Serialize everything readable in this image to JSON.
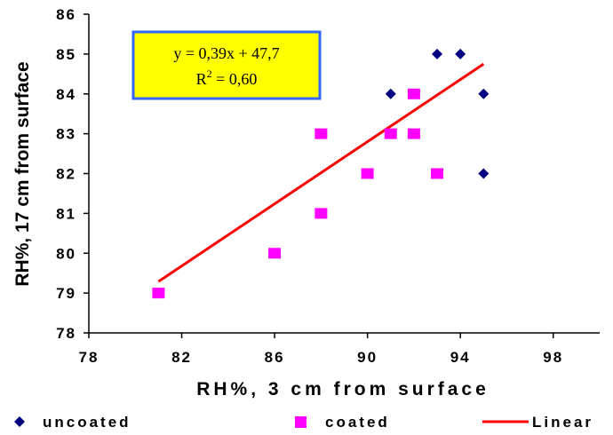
{
  "chart_data": {
    "type": "scatter",
    "xlabel": "RH%, 3 cm from surface",
    "ylabel": "RH%, 17 cm from surface",
    "xlim": [
      78,
      100
    ],
    "ylim": [
      78,
      86
    ],
    "xticks": [
      78,
      82,
      86,
      90,
      94,
      98
    ],
    "yticks": [
      78,
      79,
      80,
      81,
      82,
      83,
      84,
      85,
      86
    ],
    "series": [
      {
        "name": "uncoated",
        "marker": "diamond",
        "color": "#000080",
        "points": [
          [
            91,
            84
          ],
          [
            93,
            85
          ],
          [
            94,
            85
          ],
          [
            95,
            84
          ],
          [
            95,
            82
          ]
        ]
      },
      {
        "name": "coated",
        "marker": "square",
        "color": "#ff00ff",
        "points": [
          [
            81,
            79
          ],
          [
            86,
            80
          ],
          [
            88,
            81
          ],
          [
            88,
            83
          ],
          [
            90,
            82
          ],
          [
            91,
            83
          ],
          [
            92,
            84
          ],
          [
            92,
            83
          ],
          [
            93,
            82
          ]
        ]
      }
    ],
    "trendline": {
      "name": "Linear",
      "color": "#ff0000",
      "x_range": [
        81,
        95
      ],
      "slope": 0.39,
      "intercept": 47.7,
      "equation_line1": "y = 0,39x + 47,7",
      "equation_line2_prefix": "R",
      "equation_line2_sup": "2",
      "equation_line2_suffix": " = 0,60",
      "equation_box_fill": "#ffff00",
      "equation_box_border": "#3366ff"
    },
    "legend": {
      "position": "bottom",
      "items": [
        "uncoated",
        "coated",
        "Linear"
      ]
    },
    "grid": false
  }
}
